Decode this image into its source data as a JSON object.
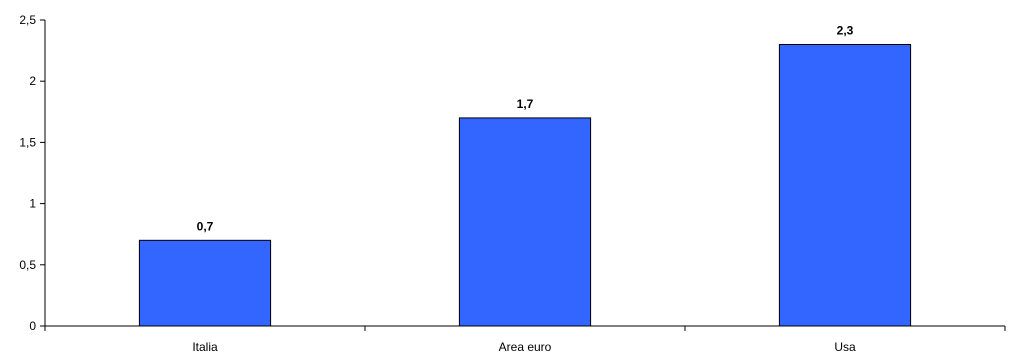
{
  "chart_data": {
    "type": "bar",
    "categories": [
      "Italia",
      "Area euro",
      "Usa"
    ],
    "values": [
      0.7,
      1.7,
      2.3
    ],
    "value_labels": [
      "0,7",
      "1,7",
      "2,3"
    ],
    "y_ticks": [
      0,
      0.5,
      1,
      1.5,
      2,
      2.5
    ],
    "y_tick_labels": [
      "0",
      "0,5",
      "1",
      "1,5",
      "2",
      "2,5"
    ],
    "ylim": [
      0,
      2.5
    ],
    "title": "",
    "xlabel": "",
    "ylabel": "",
    "grid": false,
    "legend": "none",
    "bar_color": "#3366FF",
    "bar_edge_color": "#000000",
    "axis_color": "#000000"
  }
}
